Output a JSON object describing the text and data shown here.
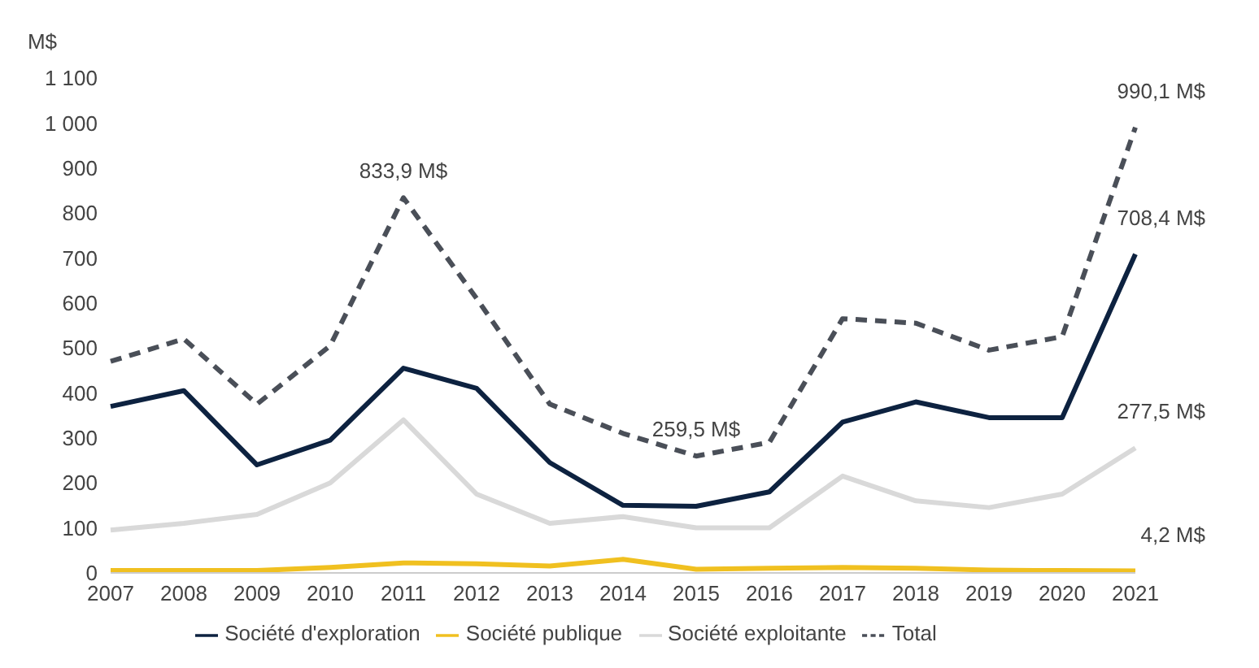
{
  "chart_data": {
    "type": "line",
    "ylabel": "M$",
    "categories": [
      "2007",
      "2008",
      "2009",
      "2010",
      "2011",
      "2012",
      "2013",
      "2014",
      "2015",
      "2016",
      "2017",
      "2018",
      "2019",
      "2020",
      "2021"
    ],
    "ylim": [
      0,
      1100
    ],
    "yticks": [
      0,
      100,
      200,
      300,
      400,
      500,
      600,
      700,
      800,
      900,
      {
        "value": 1000,
        "label": "1 000"
      },
      {
        "value": 1100,
        "label": "1 100"
      }
    ],
    "grid": false,
    "legend": "bottom",
    "marker": "none",
    "series": [
      {
        "name": "Société d'exploration",
        "color": "#0d2240",
        "line_style": "solid",
        "values": [
          370,
          405,
          240,
          295,
          455,
          410,
          245,
          150,
          148,
          180,
          335,
          380,
          345,
          345,
          708.4
        ]
      },
      {
        "name": "Société publique",
        "color": "#f0c020",
        "line_style": "solid",
        "values": [
          5,
          5,
          5,
          12,
          22,
          20,
          15,
          30,
          8,
          10,
          12,
          10,
          6,
          5,
          4.2
        ]
      },
      {
        "name": "Société exploitante",
        "color": "#d9d9d9",
        "line_style": "solid",
        "values": [
          95,
          110,
          130,
          200,
          340,
          175,
          110,
          125,
          100,
          100,
          215,
          160,
          145,
          175,
          277.5
        ]
      },
      {
        "name": "Total",
        "color": "#4a4f58",
        "line_style": "dashed",
        "values": [
          470,
          520,
          375,
          505,
          833.9,
          610,
          375,
          310,
          259.5,
          290,
          565,
          555,
          495,
          525,
          990.1
        ]
      }
    ],
    "annotations": [
      {
        "text": "833,9 M$",
        "x": "2011",
        "y": 833.9
      },
      {
        "text": "259,5 M$",
        "x": "2015",
        "y": 259.5
      },
      {
        "text": "990,1 M$",
        "x": "2021",
        "y": 990.1
      },
      {
        "text": "708,4 M$",
        "x": "2021",
        "y": 708.4
      },
      {
        "text": "277,5 M$",
        "x": "2021",
        "y": 277.5
      },
      {
        "text": "4,2 M$",
        "x": "2021",
        "y": 4.2
      }
    ]
  }
}
